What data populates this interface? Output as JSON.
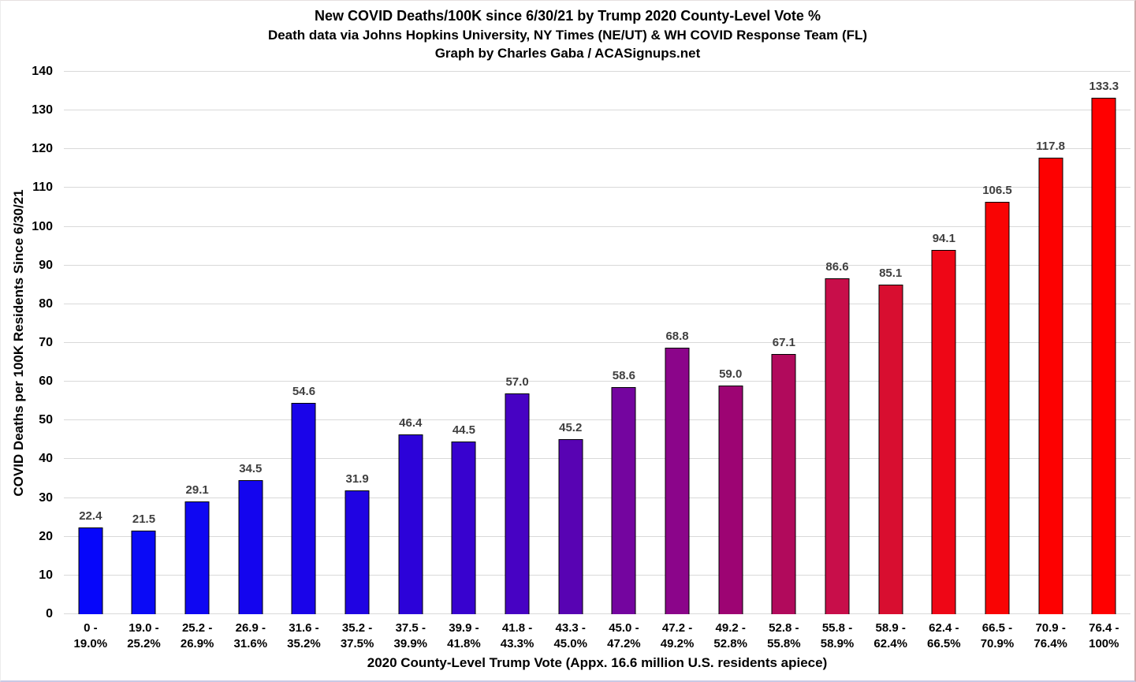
{
  "page": {
    "title": "New COVID Deaths/100K since 6/30/21 by Trump 2020 County-Level Vote %",
    "subtitle1": "Death data via Johns Hopkins University, NY Times (NE/UT) & WH COVID Response Team (FL)",
    "subtitle2": "Graph by Charles Gaba / ACASignups.net"
  },
  "chart_data": {
    "type": "bar",
    "title": "New COVID Deaths/100K since 6/30/21 by Trump 2020 County-Level Vote %",
    "subtitle": "Death data via Johns Hopkins University, NY Times (NE/UT) & WH COVID Response Team (FL)",
    "credit": "Graph by Charles Gaba / ACASignups.net",
    "xlabel": "2020 County-Level Trump Vote (Appx. 16.6 million U.S. residents apiece)",
    "ylabel": "COVID Deaths per 100K Residents Since 6/30/21",
    "ylim": [
      0,
      140
    ],
    "ytick_step": 10,
    "grid": true,
    "legend_position": "none",
    "categories": [
      [
        "0 -",
        "19.0%"
      ],
      [
        "19.0 -",
        "25.2%"
      ],
      [
        "25.2 -",
        "26.9%"
      ],
      [
        "26.9 -",
        "31.6%"
      ],
      [
        "31.6 -",
        "35.2%"
      ],
      [
        "35.2 -",
        "37.5%"
      ],
      [
        "37.5 -",
        "39.9%"
      ],
      [
        "39.9 -",
        "41.8%"
      ],
      [
        "41.8 -",
        "43.3%"
      ],
      [
        "43.3 -",
        "45.0%"
      ],
      [
        "45.0 -",
        "47.2%"
      ],
      [
        "47.2 -",
        "49.2%"
      ],
      [
        "49.2 -",
        "52.8%"
      ],
      [
        "52.8 -",
        "55.8%"
      ],
      [
        "55.8 -",
        "58.9%"
      ],
      [
        "58.9 -",
        "62.4%"
      ],
      [
        "62.4 -",
        "66.5%"
      ],
      [
        "66.5 -",
        "70.9%"
      ],
      [
        "70.9 -",
        "76.4%"
      ],
      [
        "76.4 -",
        "100%"
      ]
    ],
    "values": [
      22.4,
      21.5,
      29.1,
      34.5,
      54.6,
      31.9,
      46.4,
      44.5,
      57.0,
      45.2,
      58.6,
      68.8,
      59.0,
      67.1,
      86.6,
      85.1,
      94.1,
      106.5,
      117.8,
      133.3
    ],
    "value_labels": [
      "22.4",
      "21.5",
      "29.1",
      "34.5",
      "54.6",
      "31.9",
      "46.4",
      "44.5",
      "57.0",
      "45.2",
      "58.6",
      "68.8",
      "59.0",
      "67.1",
      "86.6",
      "85.1",
      "94.1",
      "106.5",
      "117.8",
      "133.3"
    ],
    "bar_colors": [
      "#0606fa",
      "#0a0af6",
      "#0f07f2",
      "#1405ee",
      "#1a04e9",
      "#2003e2",
      "#2c02d9",
      "#3802cf",
      "#4702c3",
      "#5803b3",
      "#74059f",
      "#8b058a",
      "#9d0473",
      "#b10a5c",
      "#c80e4a",
      "#d80e30",
      "#ee0616",
      "#f90404",
      "#fd0101",
      "#ff0000"
    ],
    "colors": {
      "gridline": "#d9d9d9",
      "value_label": "#3f3f3f",
      "bar_border": "#000000",
      "axis_text": "#000000"
    }
  }
}
